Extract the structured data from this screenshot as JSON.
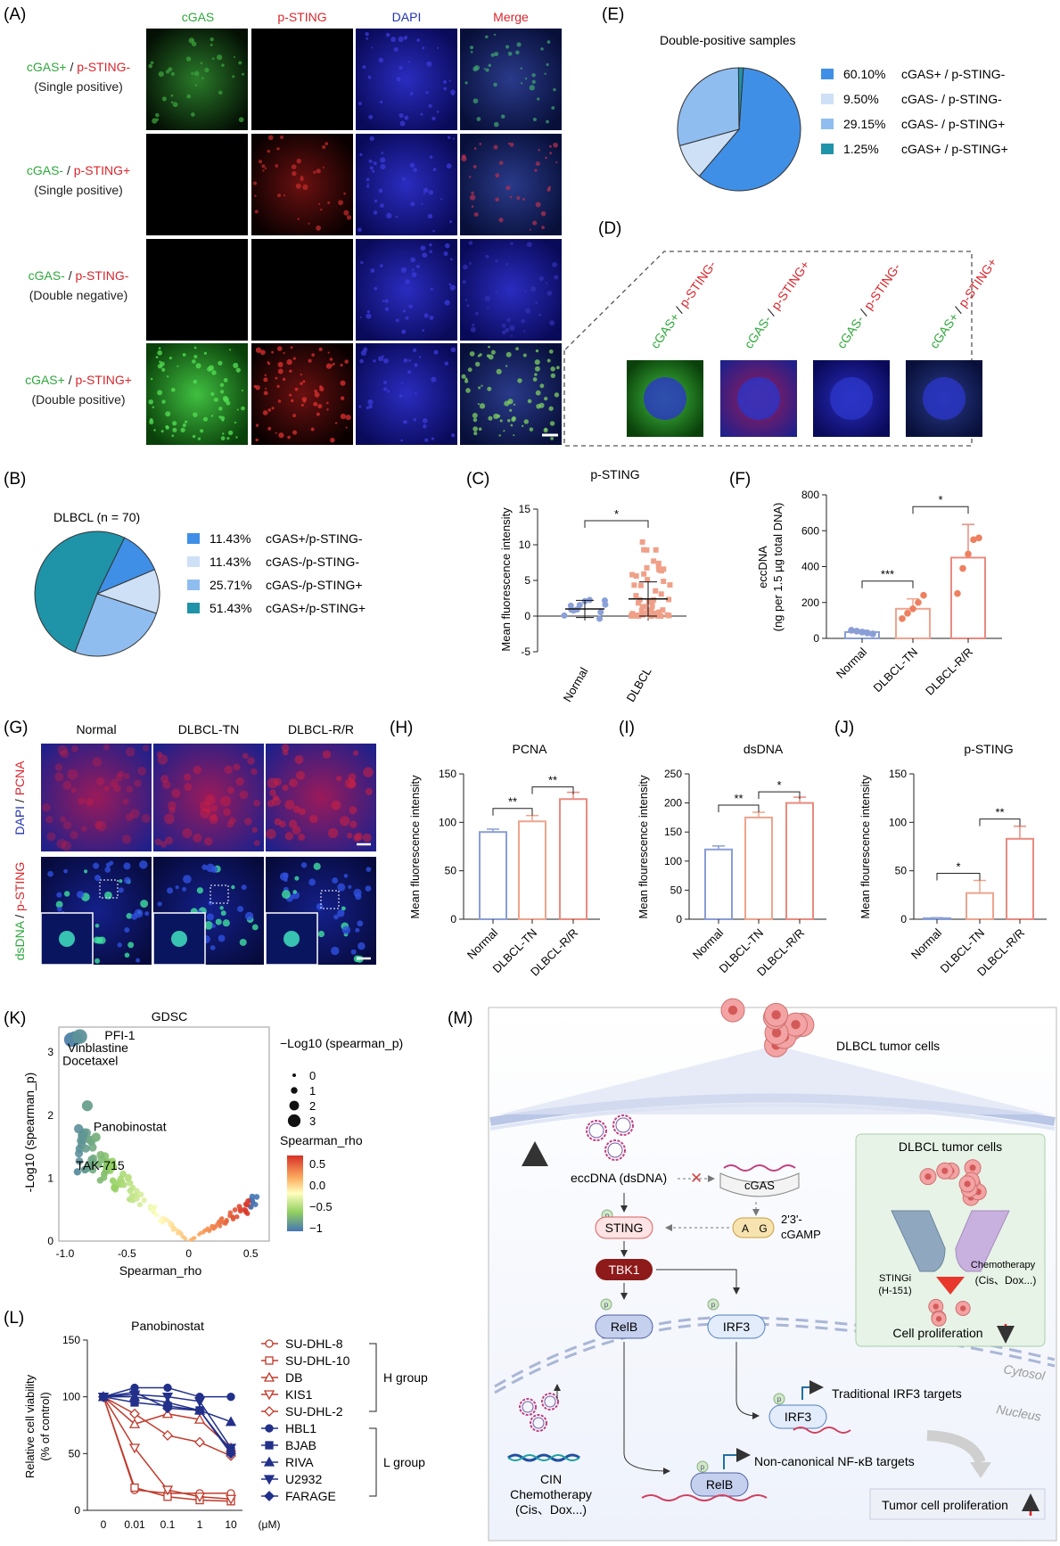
{
  "panel_letters": {
    "A": "(A)",
    "B": "(B)",
    "C": "(C)",
    "D": "(D)",
    "E": "(E)",
    "F": "(F)",
    "G": "(G)",
    "H": "(H)",
    "I": "(I)",
    "J": "(J)",
    "K": "(K)",
    "L": "(L)",
    "M": "(M)"
  },
  "colors": {
    "green": "#2fa83c",
    "red": "#d8262c",
    "blue": "#2233b6",
    "gold": "#d9a520",
    "pink": "#e8847a",
    "lightblue": "#9aa9d8"
  },
  "panel_A": {
    "columns": [
      "cGAS",
      "p-STING",
      "DAPI",
      "Merge"
    ],
    "rows": [
      {
        "g": "cGAS+",
        "r": "p-STING-",
        "sub": "(Single positive)"
      },
      {
        "g": "cGAS-",
        "r": "p-STING+",
        "sub": "(Single positive)"
      },
      {
        "g": "cGAS-",
        "r": "p-STING-",
        "sub": "(Double negative)"
      },
      {
        "g": "cGAS+",
        "r": "p-STING+",
        "sub": "(Double positive)"
      }
    ],
    "sep": " / "
  },
  "panel_D": {
    "labels": [
      {
        "g": "cGAS+",
        "r": "p-STING-"
      },
      {
        "g": "cGAS-",
        "r": "p-STING+"
      },
      {
        "g": "cGAS-",
        "r": "p-STING-"
      },
      {
        "g": "cGAS+",
        "r": "p-STING+"
      }
    ]
  },
  "chart_data": [
    {
      "id": "B",
      "type": "pie",
      "title": "DLBCL (n = 70)",
      "slices": [
        {
          "label": "cGAS+/p-STING-",
          "pct": "11.43%",
          "value": 11.43,
          "color": "#3f8fe6"
        },
        {
          "label": "cGAS-/p-STING-",
          "pct": "11.43%",
          "value": 11.43,
          "color": "#cde0f6"
        },
        {
          "label": "cGAS-/p-STING+",
          "pct": "25.71%",
          "value": 25.71,
          "color": "#8fbdf0"
        },
        {
          "label": "cGAS+/p-STING+",
          "pct": "51.43%",
          "value": 51.43,
          "color": "#1f93a8"
        }
      ]
    },
    {
      "id": "E",
      "type": "pie",
      "title": "Double-positive samples",
      "slices": [
        {
          "label": "cGAS+ / p-STING-",
          "pct": "60.10%",
          "value": 60.1,
          "color": "#3f8fe6"
        },
        {
          "label": "cGAS- / p-STING-",
          "pct": "9.50%",
          "value": 9.5,
          "color": "#cde0f6"
        },
        {
          "label": "cGAS- / p-STING+",
          "pct": "29.15%",
          "value": 29.15,
          "color": "#8fbdf0"
        },
        {
          "label": "cGAS+ / p-STING+",
          "pct": "1.25%",
          "value": 1.25,
          "color": "#1f93a8"
        }
      ]
    },
    {
      "id": "C",
      "type": "scatter",
      "title": "p-STING",
      "ylabel": "Mean fluorescence intensity",
      "categories": [
        "Normal",
        "DLBCL"
      ],
      "ylim": [
        -5,
        15
      ],
      "yticks": [
        -5,
        0,
        5,
        10,
        15
      ],
      "means": [
        1.0,
        2.4
      ],
      "sd": [
        1.2,
        2.4
      ],
      "sig": "*"
    },
    {
      "id": "F",
      "type": "bar",
      "ylabel": "eccDNA",
      "ylabel2": "(ng per 1.5 µg total DNA)",
      "categories": [
        "Normal",
        "DLBCL-TN",
        "DLBCL-R/R"
      ],
      "values": [
        35,
        165,
        450
      ],
      "sd": [
        10,
        55,
        185
      ],
      "points": [
        [
          45,
          40,
          35,
          30,
          25
        ],
        [
          110,
          140,
          165,
          200,
          240
        ],
        [
          250,
          390,
          470,
          550,
          560
        ]
      ],
      "ylim": [
        0,
        800
      ],
      "yticks": [
        0,
        200,
        400,
        600,
        800
      ],
      "sig": [
        {
          "a": 0,
          "b": 1,
          "t": "***"
        },
        {
          "a": 1,
          "b": 2,
          "t": "*"
        }
      ]
    },
    {
      "id": "H",
      "type": "bar",
      "title": "PCNA",
      "ylabel": "Mean fluorescence intensity",
      "categories": [
        "Normal",
        "DLBCL-TN",
        "DLBCL-R/R"
      ],
      "values": [
        90,
        101,
        124
      ],
      "sd": [
        3,
        6,
        7
      ],
      "ylim": [
        0,
        150
      ],
      "yticks": [
        0,
        50,
        100,
        150
      ],
      "sig": [
        {
          "a": 0,
          "b": 1,
          "t": "**"
        },
        {
          "a": 1,
          "b": 2,
          "t": "**"
        }
      ]
    },
    {
      "id": "I",
      "type": "bar",
      "title": "dsDNA",
      "ylabel": "Mean flourescence intensity",
      "categories": [
        "Normal",
        "DLBCL-TN",
        "DLBCL-R/R"
      ],
      "values": [
        120,
        175,
        200
      ],
      "sd": [
        6,
        9,
        10
      ],
      "ylim": [
        0,
        250
      ],
      "yticks": [
        0,
        50,
        100,
        150,
        200,
        250
      ],
      "sig": [
        {
          "a": 0,
          "b": 1,
          "t": "**"
        },
        {
          "a": 1,
          "b": 2,
          "t": "*"
        }
      ]
    },
    {
      "id": "J",
      "type": "bar",
      "title": "p-STING",
      "ylabel": "Mean flourescence intensity",
      "categories": [
        "Normal",
        "DLBCL-TN",
        "DLBCL-R/R"
      ],
      "values": [
        1,
        27,
        83
      ],
      "sd": [
        0.5,
        13,
        13
      ],
      "ylim": [
        0,
        150
      ],
      "yticks": [
        0,
        50,
        100,
        150
      ],
      "sig": [
        {
          "a": 0,
          "b": 1,
          "t": "*"
        },
        {
          "a": 1,
          "b": 2,
          "t": "**"
        }
      ]
    },
    {
      "id": "K",
      "type": "scatter",
      "title": "GDSC",
      "xlabel": "Spearman_rho",
      "ylabel": "-Log10 (spearman_p)",
      "xlim": [
        -1.05,
        0.65
      ],
      "ylim": [
        0,
        3.4
      ],
      "xticks": [
        -1.0,
        -0.5,
        0,
        0.5
      ],
      "xticklabels": [
        "-1.0",
        "-0.5",
        "0",
        "0.5"
      ],
      "yticks": [
        0,
        1,
        2,
        3
      ],
      "annotations": [
        {
          "text": "PFI-1",
          "x": -0.68,
          "y": 3.2
        },
        {
          "text": "Vinblastine",
          "x": -0.98,
          "y": 3.0
        },
        {
          "text": "Docetaxel",
          "x": -1.02,
          "y": 2.8
        },
        {
          "text": "Panobinostat",
          "x": -0.77,
          "y": 1.75
        },
        {
          "text": "TAK-715",
          "x": -0.91,
          "y": 1.13
        }
      ],
      "size_legend_title": "−Log10 (spearman_p)",
      "size_legend": [
        0,
        1,
        2,
        3
      ],
      "color_legend_title": "Spearman_rho",
      "color_legend": [
        "0.5",
        "0.0",
        "−0.5",
        "−1"
      ]
    },
    {
      "id": "L",
      "type": "line",
      "title": "Panobinostat",
      "ylabel": "Relative cell viability",
      "ylabel2": "(% of control)",
      "xlabel_unit": "(μM)",
      "categories": [
        "0",
        "0.01",
        "0.1",
        "1",
        "10"
      ],
      "ylim": [
        0,
        150
      ],
      "yticks": [
        0,
        50,
        100,
        150
      ],
      "series": [
        {
          "name": "SU-DHL-8",
          "group": "H",
          "values": [
            100,
            18,
            15,
            15,
            15
          ],
          "color": "#c0392b",
          "marker": "circle"
        },
        {
          "name": "SU-DHL-10",
          "group": "H",
          "values": [
            100,
            20,
            12,
            9,
            8
          ],
          "color": "#c0392b",
          "marker": "square"
        },
        {
          "name": "DB",
          "group": "H",
          "values": [
            100,
            76,
            85,
            80,
            55
          ],
          "color": "#c0392b",
          "marker": "triangle"
        },
        {
          "name": "KIS1",
          "group": "H",
          "values": [
            100,
            55,
            18,
            12,
            10
          ],
          "color": "#c0392b",
          "marker": "tri-down"
        },
        {
          "name": "SU-DHL-2",
          "group": "H",
          "values": [
            100,
            85,
            66,
            60,
            48
          ],
          "color": "#c0392b",
          "marker": "diamond"
        },
        {
          "name": "HBL1",
          "group": "L",
          "values": [
            100,
            108,
            108,
            100,
            100
          ],
          "color": "#22308a",
          "marker": "circle"
        },
        {
          "name": "BJAB",
          "group": "L",
          "values": [
            100,
            95,
            92,
            88,
            52
          ],
          "color": "#22308a",
          "marker": "square"
        },
        {
          "name": "RIVA",
          "group": "L",
          "values": [
            100,
            100,
            95,
            88,
            78
          ],
          "color": "#22308a",
          "marker": "triangle"
        },
        {
          "name": "U2932",
          "group": "L",
          "values": [
            100,
            102,
            100,
            96,
            55
          ],
          "color": "#22308a",
          "marker": "tri-down"
        },
        {
          "name": "FARAGE",
          "group": "L",
          "values": [
            100,
            104,
            90,
            88,
            50
          ],
          "color": "#22308a",
          "marker": "diamond"
        }
      ],
      "groups": [
        {
          "name": "H group"
        },
        {
          "name": "L group"
        }
      ]
    }
  ],
  "panel_G": {
    "columns": [
      "Normal",
      "DLBCL-TN",
      "DLBCL-R/R"
    ],
    "row1_a": "DAPI",
    "row1_sep": " / ",
    "row1_b": "PCNA",
    "row2_a": "dsDNA",
    "row2_sep": " / ",
    "row2_b": "p-STING"
  },
  "panel_M": {
    "top": "DLBCL tumor cells",
    "eccdna": "eccDNA (dsDNA)",
    "cgas": "cGAS",
    "cgamp1": "2'3'-",
    "cgamp2": "cGAMP",
    "sting": "STING",
    "tbk1": "TBK1",
    "relb": "RelB",
    "irf3": "IRF3",
    "ag1": "A",
    "ag2": "G",
    "p": "p",
    "cytosol": "Cytosol",
    "nucleus": "Nucleus",
    "irf3_targets": "Traditional IRF3 targets",
    "nfkb": "Non-canonical NF-κB targets",
    "cin": "CIN",
    "chemo1": "Chemotherapy",
    "chemo2": "(Cis、Dox...)",
    "prolif": "Tumor cell proliferation",
    "inset_title": "DLBCL tumor cells",
    "stingi1": "STINGi",
    "stingi2": "(H-151)",
    "chemo_in1": "Chemotherapy",
    "chemo_in2": "(Cis、Dox...)",
    "cell_prolif": "Cell proliferation"
  }
}
